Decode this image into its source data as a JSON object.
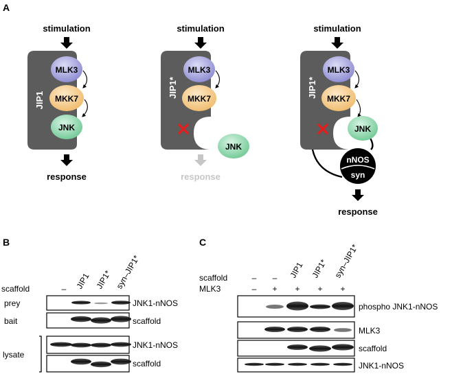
{
  "panel_a": {
    "label": "A",
    "diagram1": {
      "top": "stimulation",
      "scaffold": "JIP1",
      "kinases": [
        "MLK3",
        "MKK7",
        "JNK"
      ],
      "bottom": "response"
    },
    "diagram2": {
      "top": "stimulation",
      "scaffold": "JIP1*",
      "kinases": [
        "MLK3",
        "MKK7"
      ],
      "free_kinase": "JNK",
      "bottom": "response"
    },
    "diagram3": {
      "top": "stimulation",
      "scaffold": "JIP1*",
      "kinases": [
        "MLK3",
        "MKK7",
        "JNK"
      ],
      "synthetic_top": "nNOS",
      "synthetic_bottom": "syn",
      "bottom": "response"
    },
    "colors": {
      "scaffold": "#5c5c5c",
      "mlk3": "#9a98d6",
      "mkk7": "#f3c686",
      "jnk": "#8fd6ad",
      "cross": "#e02020",
      "faded": "#c6c6c6"
    }
  },
  "panel_b": {
    "label": "B",
    "row_header": "scaffold",
    "lanes": [
      "–",
      "JIP1",
      "JIP1*",
      "syn–JIP1*"
    ],
    "rows": [
      {
        "left": "prey",
        "right": "JNK1-nNOS"
      },
      {
        "left": "bait",
        "right": "scaffold"
      },
      {
        "left": "",
        "right": "JNK1-nNOS"
      },
      {
        "left": "",
        "right": "scaffold"
      }
    ],
    "group_label": "lysate"
  },
  "panel_c": {
    "label": "C",
    "row_headers": [
      "scaffold",
      "MLK3"
    ],
    "lanes": [
      "–",
      "–",
      "JIP1",
      "JIP1*",
      "syn–JIP1*"
    ],
    "mlk3_values": [
      "–",
      "+",
      "+",
      "+",
      "+"
    ],
    "rows": [
      "phospho JNK1-nNOS",
      "MLK3",
      "scaffold",
      "JNK1-nNOS"
    ]
  }
}
